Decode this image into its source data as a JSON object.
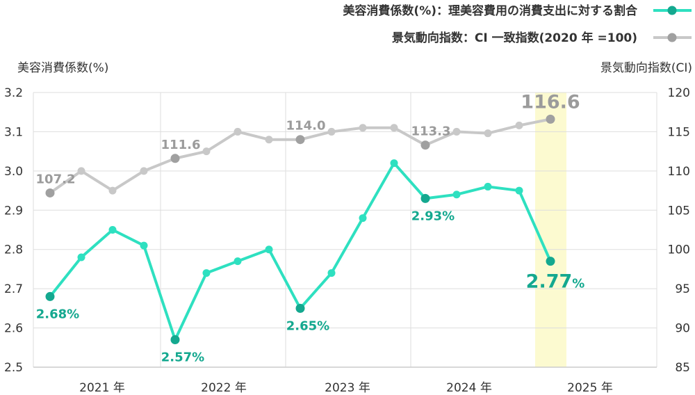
{
  "chart_data": {
    "type": "line",
    "legend": [
      {
        "name": "美容消費係数(%)：理美容費用の消費支出に対する割合",
        "color": "#2ee0c0"
      },
      {
        "name": "景気動向指数：CI 一致指数(2020 年 =100)",
        "color": "#c8c8c8"
      }
    ],
    "y_left_label": "美容消費係数(%)",
    "y_right_label": "景気動向指数(CI)",
    "y_left_range": [
      2.5,
      3.2
    ],
    "y_left_ticks": [
      "3.2",
      "3.1",
      "3.0",
      "2.9",
      "2.8",
      "2.7",
      "2.6",
      "2.5"
    ],
    "y_right_range": [
      85,
      120
    ],
    "y_right_ticks": [
      "120",
      "115",
      "110",
      "105",
      "100",
      "95",
      "90",
      "85"
    ],
    "x_labels": [
      "2021 年",
      "2022 年",
      "2023 年",
      "2024 年",
      "2025 年"
    ],
    "series": [
      {
        "name": "美容消費係数(%)：理美容費用の消費支出に対する割合",
        "axis": "left",
        "color": "#2ee0c0",
        "values": [
          2.68,
          2.78,
          2.85,
          2.81,
          2.57,
          2.74,
          2.77,
          2.8,
          2.65,
          2.74,
          2.88,
          3.02,
          2.93,
          2.94,
          2.96,
          2.95,
          2.77
        ]
      },
      {
        "name": "景気動向指数：CI 一致指数(2020 年 =100)",
        "axis": "right",
        "color": "#c8c8c8",
        "values": [
          107.2,
          110.0,
          107.5,
          110.0,
          111.6,
          112.5,
          115.0,
          114.0,
          114.0,
          115.0,
          115.5,
          115.5,
          113.3,
          115.0,
          114.8,
          115.8,
          116.6
        ]
      }
    ],
    "annotations": {
      "green": [
        {
          "index": 0,
          "text": "2.68%"
        },
        {
          "index": 4,
          "text": "2.57%"
        },
        {
          "index": 8,
          "text": "2.65%"
        },
        {
          "index": 12,
          "text": "2.93%"
        }
      ],
      "green_last": {
        "index": 16,
        "value": "2.77",
        "unit": "%"
      },
      "grey": [
        {
          "index": 0,
          "text": "107.2"
        },
        {
          "index": 4,
          "text": "111.6"
        },
        {
          "index": 8,
          "text": "114.0"
        },
        {
          "index": 12,
          "text": "113.3"
        }
      ],
      "grey_last": {
        "index": 16,
        "text": "116.6"
      }
    },
    "highlight_index": 16,
    "grid": true
  }
}
